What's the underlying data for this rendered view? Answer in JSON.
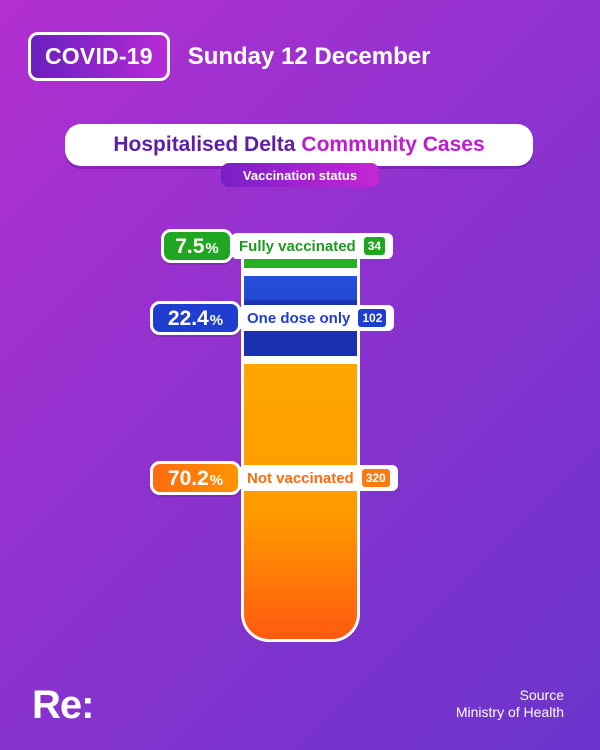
{
  "header": {
    "badge": "COVID-19",
    "date": "Sunday 12 December"
  },
  "title": {
    "part1": "Hospitalised Delta",
    "part2": "Community Cases",
    "subtitle": "Vaccination status"
  },
  "chart_data": {
    "type": "bar",
    "orientation": "stacked-vertical",
    "title": "Hospitalised Delta Community Cases",
    "subtitle": "Vaccination status",
    "categories": [
      "Fully vaccinated",
      "One dose only",
      "Not vaccinated"
    ],
    "percent_values": [
      7.5,
      22.4,
      70.2
    ],
    "percent_labels": [
      "7.5",
      "22.4",
      "70.2"
    ],
    "percent_sign": "%",
    "counts": [
      34,
      102,
      320
    ],
    "count_labels": [
      "34",
      "102",
      "320"
    ],
    "colors": [
      "#27b024",
      "#1f3ed0",
      "#ff9400"
    ]
  },
  "footer": {
    "logo": "Re:",
    "source_label": "Source",
    "source_name": "Ministry of Health"
  }
}
